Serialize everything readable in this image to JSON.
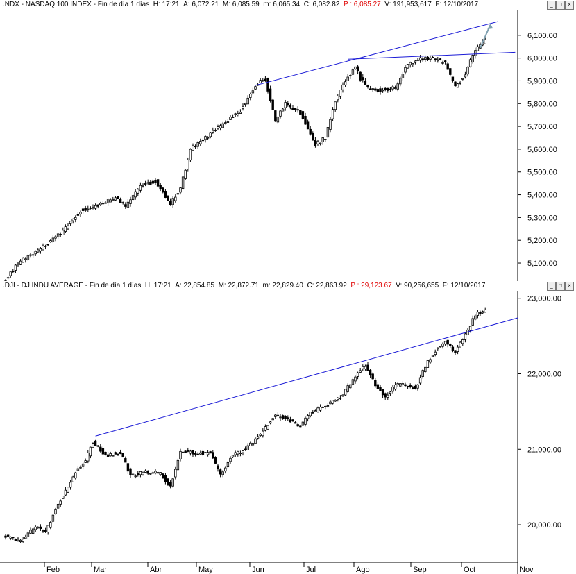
{
  "panes": [
    {
      "symbol": ".NDX",
      "name": "NASDAQ 100 INDEX",
      "period": "Fin de día 1 días",
      "hour": "17:21",
      "open": "6,072.21",
      "high": "6,085.59",
      "low": "6,065.34",
      "close": "6,082.82",
      "p": "6,085.27",
      "volume": "191,953,617",
      "date": "12/10/2017"
    },
    {
      "symbol": ".DJI",
      "name": "DJ INDU AVERAGE",
      "period": "Fin de día 1 días",
      "hour": "17:21",
      "open": "22,854.85",
      "high": "22,872.71",
      "low": "22,829.40",
      "close": "22,863.92",
      "p": "29,123.67",
      "volume": "90,256,655",
      "date": "12/10/2017"
    }
  ],
  "window_buttons": [
    "_",
    "□",
    "×"
  ],
  "header_labels": {
    "h": "H:",
    "a": "A:",
    "m": "M:",
    "mi": "m:",
    "c": "C:",
    "p": "P :",
    "v": "V:",
    "f": "F:"
  },
  "months": [
    "Feb",
    "Mar",
    "Abr",
    "May",
    "Jun",
    "Jul",
    "Ago",
    "Sep",
    "Oct",
    "Nov"
  ],
  "chart_data": [
    {
      "type": "candlestick",
      "title": ".NDX - NASDAQ 100 INDEX",
      "ylim": [
        5030,
        6200
      ],
      "y_ticks": [
        "5,100.00",
        "5,200.00",
        "5,300.00",
        "5,400.00",
        "5,500.00",
        "5,600.00",
        "5,700.00",
        "5,800.00",
        "5,900.00",
        "6,000.00",
        "6,100.00"
      ],
      "tick_values": [
        5100,
        5200,
        5300,
        5400,
        5500,
        5600,
        5700,
        5800,
        5900,
        6000,
        6100
      ],
      "grid": false,
      "anchors": [
        [
          0,
          5030
        ],
        [
          6,
          5110
        ],
        [
          14,
          5160
        ],
        [
          22,
          5230
        ],
        [
          30,
          5330
        ],
        [
          36,
          5350
        ],
        [
          44,
          5390
        ],
        [
          48,
          5350
        ],
        [
          54,
          5440
        ],
        [
          60,
          5460
        ],
        [
          66,
          5360
        ],
        [
          70,
          5430
        ],
        [
          74,
          5600
        ],
        [
          80,
          5650
        ],
        [
          88,
          5720
        ],
        [
          94,
          5770
        ],
        [
          100,
          5880
        ],
        [
          104,
          5910
        ],
        [
          108,
          5720
        ],
        [
          112,
          5800
        ],
        [
          118,
          5760
        ],
        [
          124,
          5620
        ],
        [
          128,
          5650
        ],
        [
          132,
          5810
        ],
        [
          136,
          5900
        ],
        [
          140,
          5960
        ],
        [
          142,
          5910
        ],
        [
          146,
          5860
        ],
        [
          152,
          5860
        ],
        [
          156,
          5870
        ],
        [
          160,
          5960
        ],
        [
          164,
          5990
        ],
        [
          170,
          6000
        ],
        [
          176,
          5980
        ],
        [
          180,
          5870
        ],
        [
          184,
          5930
        ],
        [
          188,
          6040
        ],
        [
          192,
          6075
        ]
      ],
      "trendlines": [
        {
          "x": [
            100,
            197
          ],
          "y": [
            5880,
            6160
          ]
        },
        {
          "x": [
            137,
            204
          ],
          "y": [
            5995,
            6025
          ]
        }
      ],
      "arrow": {
        "x": [
          190,
          194
        ],
        "y": [
          6045,
          6145
        ]
      }
    },
    {
      "type": "candlestick",
      "title": ".DJI - DJ INDU AVERAGE",
      "ylim": [
        19550,
        23080
      ],
      "y_ticks": [
        "20,000.00",
        "21,000.00",
        "22,000.00",
        "23,000.00"
      ],
      "tick_values": [
        20000,
        21000,
        22000,
        23000
      ],
      "grid": false,
      "anchors": [
        [
          0,
          19850
        ],
        [
          6,
          19780
        ],
        [
          12,
          19970
        ],
        [
          16,
          19900
        ],
        [
          20,
          20200
        ],
        [
          24,
          20450
        ],
        [
          28,
          20700
        ],
        [
          32,
          20850
        ],
        [
          35,
          21100
        ],
        [
          40,
          20920
        ],
        [
          46,
          20960
        ],
        [
          50,
          20650
        ],
        [
          56,
          20700
        ],
        [
          62,
          20680
        ],
        [
          66,
          20500
        ],
        [
          70,
          20970
        ],
        [
          76,
          20950
        ],
        [
          82,
          20950
        ],
        [
          86,
          20650
        ],
        [
          90,
          20900
        ],
        [
          96,
          21000
        ],
        [
          102,
          21200
        ],
        [
          108,
          21450
        ],
        [
          114,
          21380
        ],
        [
          118,
          21300
        ],
        [
          122,
          21480
        ],
        [
          128,
          21580
        ],
        [
          134,
          21680
        ],
        [
          138,
          21870
        ],
        [
          142,
          22050
        ],
        [
          144,
          22100
        ],
        [
          148,
          21850
        ],
        [
          152,
          21700
        ],
        [
          156,
          21850
        ],
        [
          160,
          21850
        ],
        [
          164,
          21800
        ],
        [
          168,
          22100
        ],
        [
          172,
          22310
        ],
        [
          176,
          22420
        ],
        [
          180,
          22280
        ],
        [
          184,
          22520
        ],
        [
          188,
          22770
        ],
        [
          192,
          22860
        ]
      ],
      "trendlines": [
        {
          "x": [
            36,
            205
          ],
          "y": [
            21175,
            22740
          ]
        }
      ]
    }
  ]
}
